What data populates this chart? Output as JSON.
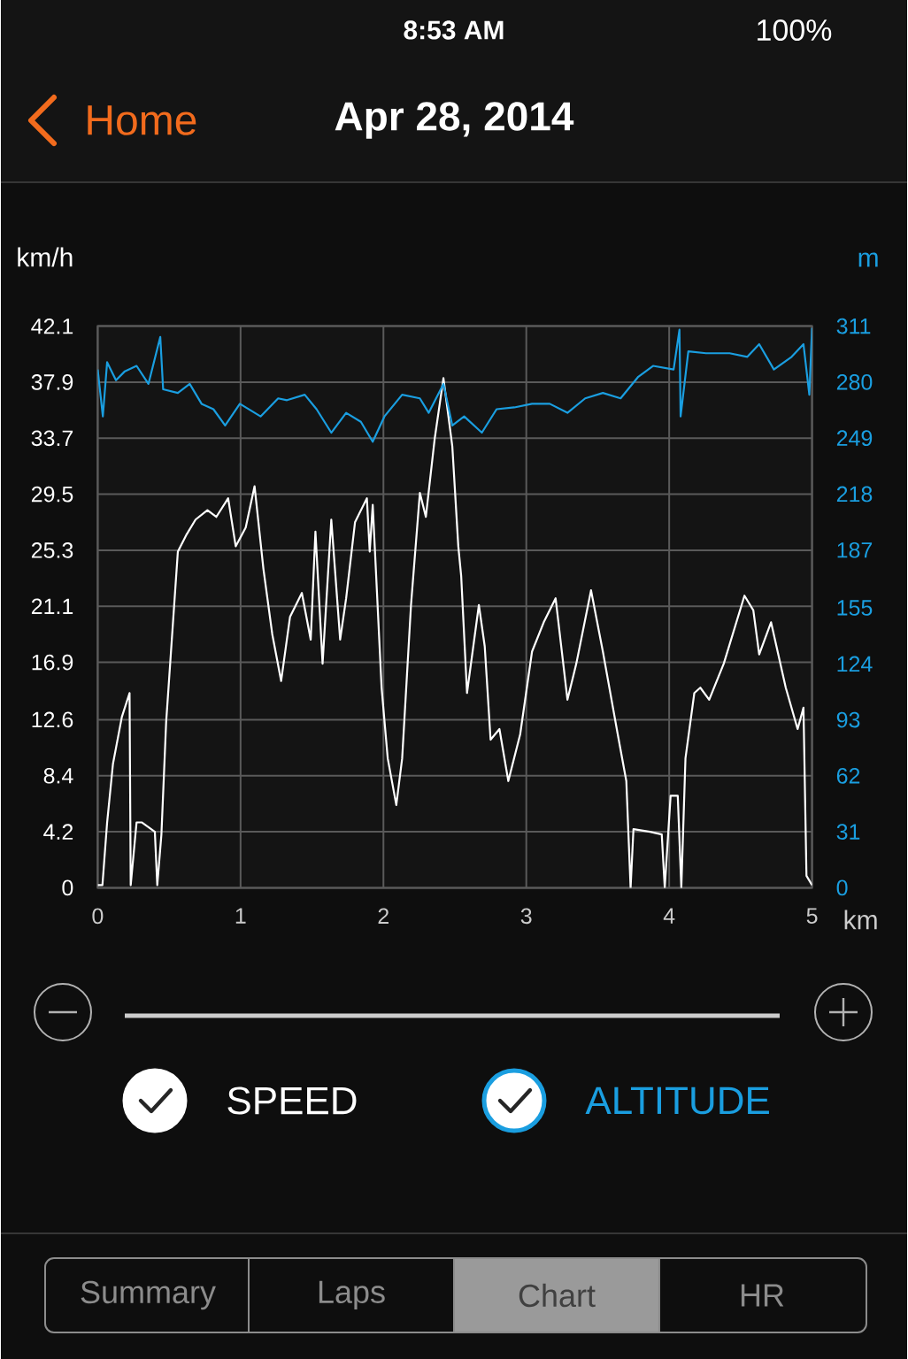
{
  "chart_data": {
    "type": "line",
    "title": "Apr 28, 2014",
    "xlabel": "km",
    "ylabel": "km/h",
    "y2label": "m",
    "xlim": [
      0,
      5
    ],
    "xticks": [
      0,
      1,
      2,
      3,
      4,
      5
    ],
    "ylim": [
      0,
      42.1
    ],
    "yticks": [
      0,
      4.2,
      8.4,
      12.6,
      16.9,
      21.1,
      25.3,
      29.5,
      33.7,
      37.9,
      42.1
    ],
    "y2lim": [
      0,
      311
    ],
    "y2ticks": [
      0,
      31,
      62,
      93,
      124,
      155,
      187,
      218,
      249,
      280,
      311
    ],
    "grid": true,
    "legend": "bottom",
    "annotations": [
      "8:53 AM",
      "100%",
      "Home",
      "Summary",
      "Laps",
      "Chart",
      "HR"
    ],
    "series": [
      {
        "name": "SPEED",
        "color": "#ffffff",
        "x": [
          0,
          0.033,
          0.066,
          0.107,
          0.169,
          0.223,
          0.231,
          0.272,
          0.31,
          0.4,
          0.417,
          0.446,
          0.479,
          0.561,
          0.623,
          0.685,
          0.768,
          0.83,
          0.913,
          0.966,
          1.036,
          1.098,
          1.16,
          1.222,
          1.284,
          1.346,
          1.429,
          1.491,
          1.524,
          1.574,
          1.635,
          1.697,
          1.739,
          1.801,
          1.884,
          1.904,
          1.925,
          1.987,
          2.03,
          2.09,
          2.131,
          2.193,
          2.255,
          2.297,
          2.358,
          2.42,
          2.482,
          2.524,
          2.544,
          2.585,
          2.668,
          2.709,
          2.75,
          2.812,
          2.874,
          2.957,
          3.04,
          3.122,
          3.205,
          3.288,
          3.35,
          3.453,
          3.536,
          3.64,
          3.7,
          3.73,
          3.75,
          3.866,
          3.948,
          3.969,
          4.01,
          4.06,
          4.085,
          4.114,
          4.176,
          4.218,
          4.28,
          4.382,
          4.527,
          4.589,
          4.63,
          4.713,
          4.816,
          4.899,
          4.94,
          4.961,
          5.0
        ],
        "values": [
          0.2,
          0.2,
          4.9,
          9.3,
          12.8,
          14.6,
          0.2,
          4.9,
          4.9,
          4.2,
          0.2,
          4.0,
          12.4,
          25.2,
          26.5,
          27.6,
          28.3,
          27.8,
          29.2,
          25.6,
          27.0,
          30.1,
          23.9,
          19.0,
          15.5,
          20.3,
          22.1,
          18.6,
          26.7,
          16.8,
          27.6,
          18.6,
          21.7,
          27.4,
          29.2,
          25.2,
          28.7,
          15.0,
          9.7,
          6.2,
          9.7,
          21.2,
          29.6,
          27.8,
          33.6,
          38.2,
          33.1,
          25.6,
          23.4,
          14.6,
          21.2,
          18.1,
          11.1,
          11.9,
          8.0,
          11.5,
          17.7,
          19.9,
          21.7,
          14.1,
          16.8,
          22.3,
          17.7,
          11.5,
          8.0,
          0,
          4.4,
          4.2,
          4.0,
          0,
          6.9,
          6.9,
          0,
          9.7,
          14.6,
          15.0,
          14.1,
          16.8,
          21.9,
          20.8,
          17.5,
          19.9,
          15.0,
          11.9,
          13.5,
          0.9,
          0.2
        ]
      },
      {
        "name": "ALTITUDE",
        "color": "#1a9ee0",
        "axis": "y2",
        "x": [
          0,
          0.036,
          0.066,
          0.128,
          0.19,
          0.272,
          0.355,
          0.438,
          0.458,
          0.561,
          0.644,
          0.727,
          0.81,
          0.892,
          0.995,
          1.14,
          1.263,
          1.325,
          1.449,
          1.532,
          1.635,
          1.739,
          1.842,
          1.925,
          2.007,
          2.131,
          2.255,
          2.317,
          2.42,
          2.482,
          2.565,
          2.689,
          2.792,
          2.916,
          3.04,
          3.164,
          3.288,
          3.412,
          3.536,
          3.66,
          3.784,
          3.887,
          4.031,
          4.072,
          4.08,
          4.134,
          4.258,
          4.423,
          4.547,
          4.63,
          4.733,
          4.857,
          4.94,
          4.981,
          5.0
        ],
        "values": [
          287,
          261,
          291,
          281,
          286,
          289,
          279,
          305,
          276,
          274,
          279,
          268,
          265,
          256,
          268,
          261,
          271,
          270,
          273,
          265,
          252,
          263,
          258,
          247,
          261,
          273,
          271,
          263,
          279,
          256,
          261,
          252,
          265,
          266,
          268,
          268,
          263,
          271,
          274,
          271,
          283,
          289,
          287,
          309,
          261,
          297,
          296,
          296,
          294,
          301,
          287,
          294,
          301,
          273,
          310
        ]
      }
    ]
  }
}
